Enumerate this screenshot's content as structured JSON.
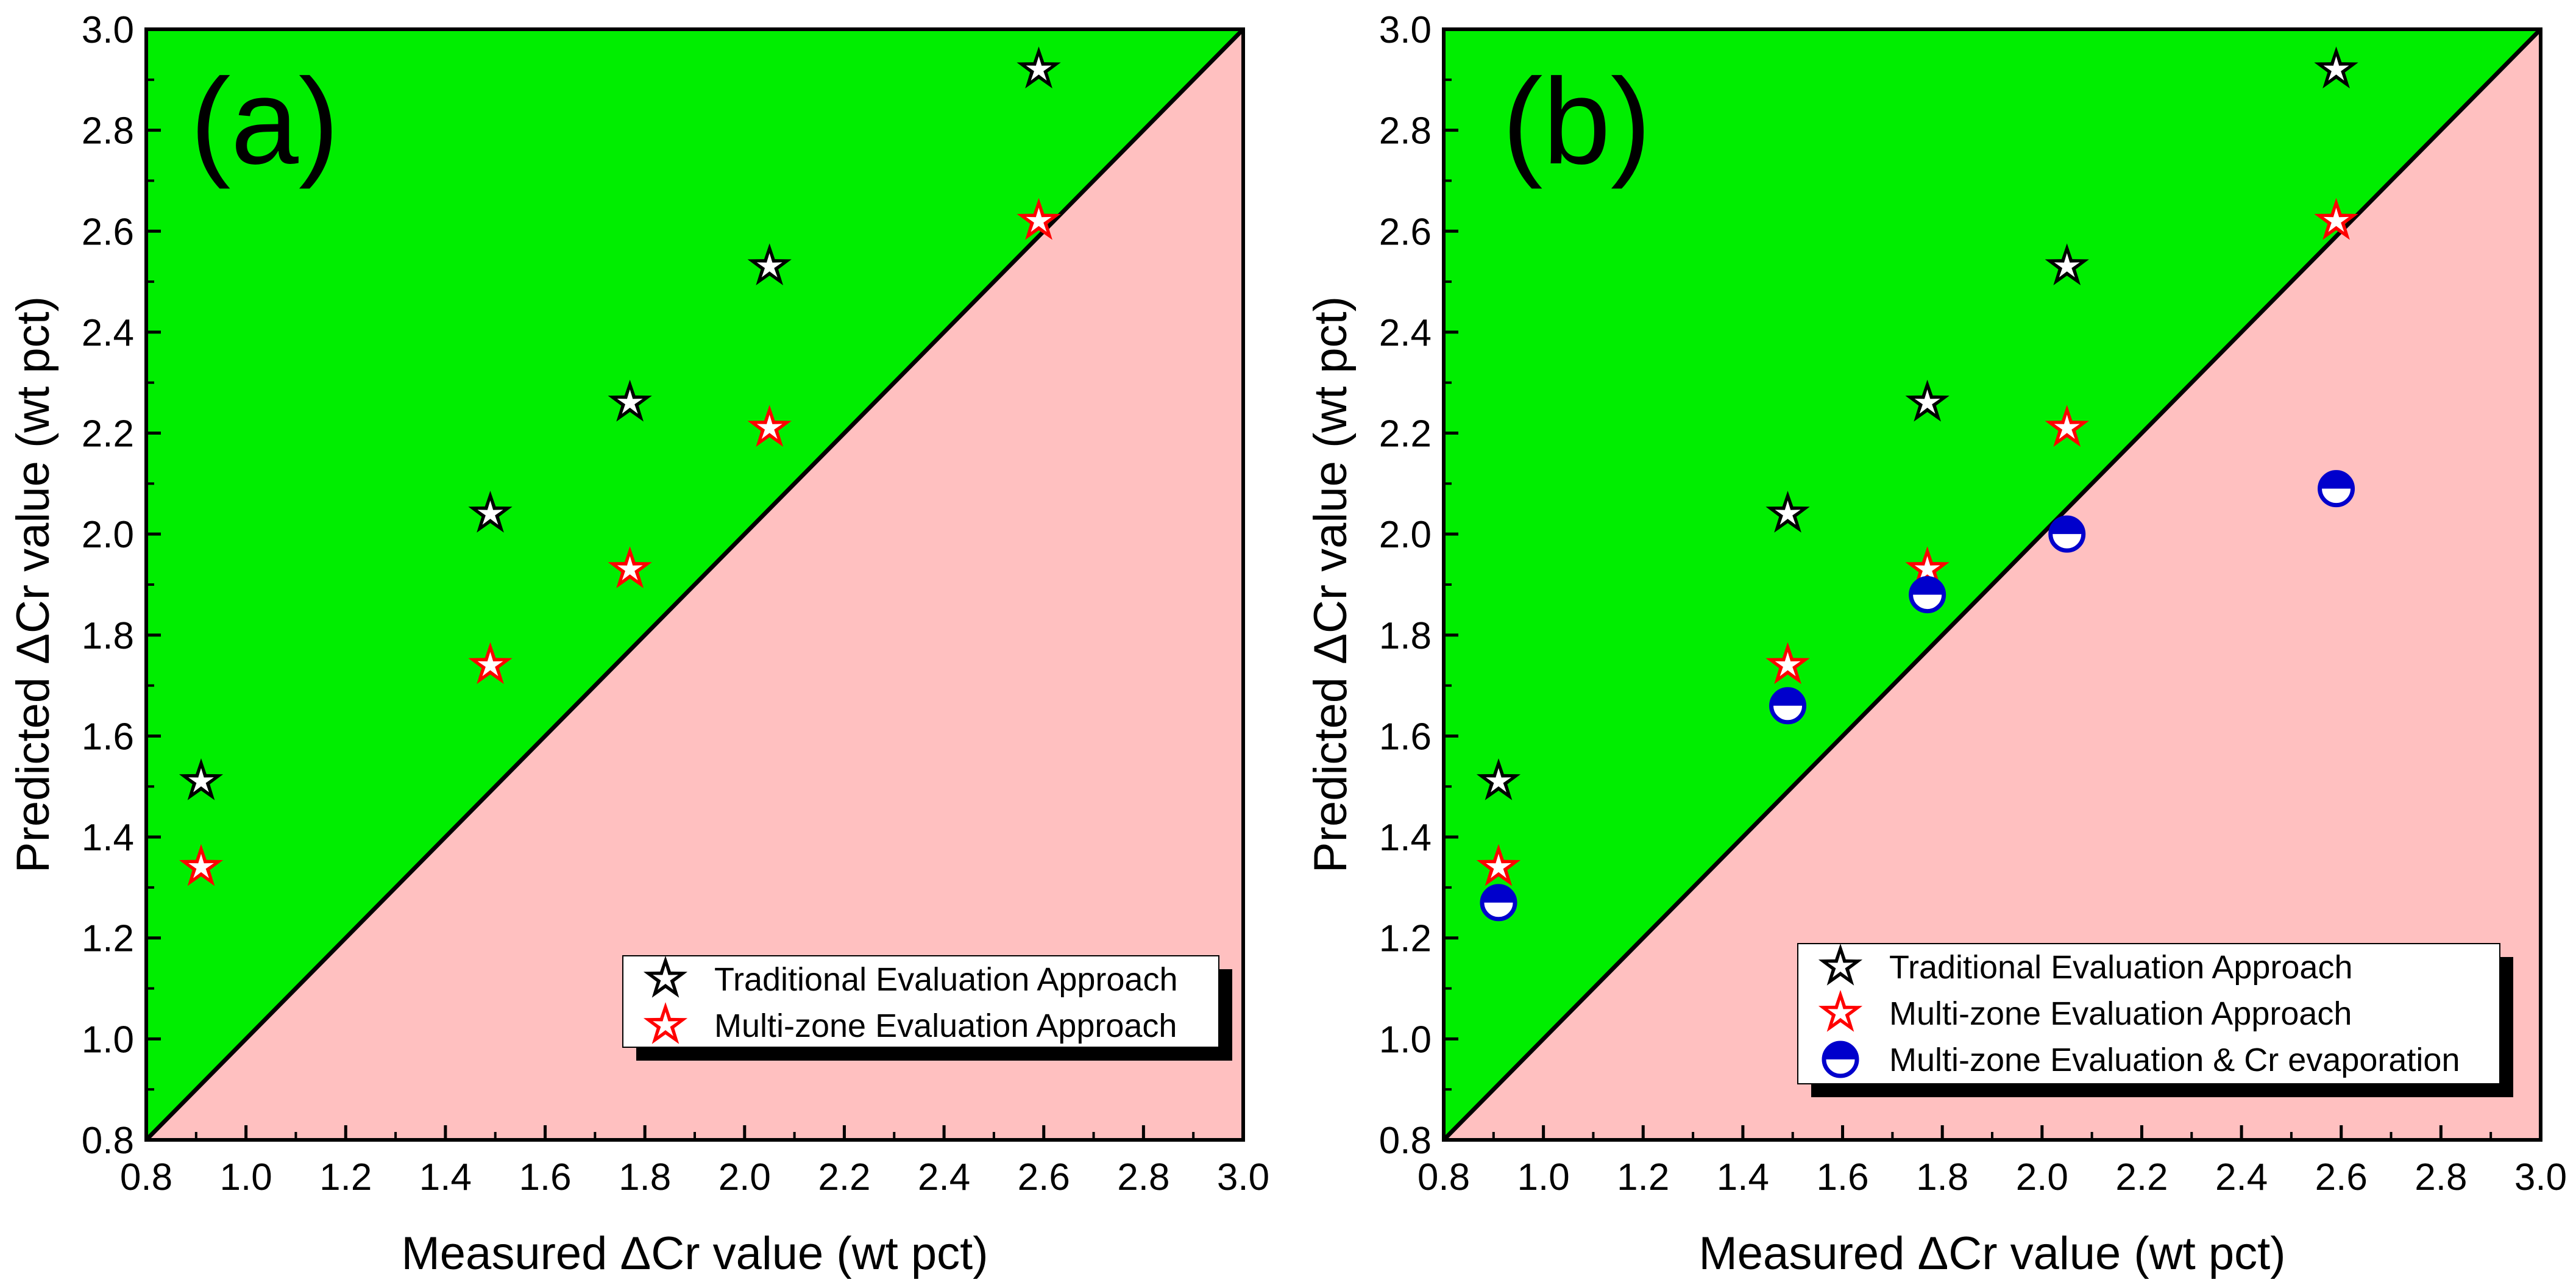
{
  "chart_data": [
    {
      "type": "scatter",
      "panel_label": "(a)",
      "xlabel": "Measured ΔCr value (wt pct)",
      "ylabel": "Predicted ΔCr value (wt pct)",
      "xlim": [
        0.8,
        3.0
      ],
      "ylim": [
        0.8,
        3.0
      ],
      "xticks": [
        "0.8",
        "1.0",
        "1.2",
        "1.4",
        "1.6",
        "1.8",
        "2.0",
        "2.2",
        "2.4",
        "2.6",
        "2.8",
        "3.0"
      ],
      "yticks": [
        "0.8",
        "1.0",
        "1.2",
        "1.4",
        "1.6",
        "1.8",
        "2.0",
        "2.2",
        "2.4",
        "2.6",
        "2.8",
        "3.0"
      ],
      "regions": {
        "above_diagonal": "#00ee00",
        "below_diagonal": "#ffc0c0"
      },
      "legend_position": "bottom-right",
      "series": [
        {
          "name": "Traditional Evaluation Approach",
          "marker": "star",
          "color": "#000000",
          "x": [
            0.91,
            1.49,
            1.77,
            2.05,
            2.59
          ],
          "y": [
            1.51,
            2.04,
            2.26,
            2.53,
            2.92
          ]
        },
        {
          "name": "Multi-zone Evaluation Approach",
          "marker": "star",
          "color": "#ff0000",
          "x": [
            0.91,
            1.49,
            1.77,
            2.05,
            2.59
          ],
          "y": [
            1.34,
            1.74,
            1.93,
            2.21,
            2.62
          ]
        }
      ]
    },
    {
      "type": "scatter",
      "panel_label": "(b)",
      "xlabel": "Measured ΔCr value (wt pct)",
      "ylabel": "Predicted ΔCr value (wt pct)",
      "xlim": [
        0.8,
        3.0
      ],
      "ylim": [
        0.8,
        3.0
      ],
      "xticks": [
        "0.8",
        "1.0",
        "1.2",
        "1.4",
        "1.6",
        "1.8",
        "2.0",
        "2.2",
        "2.4",
        "2.6",
        "2.8",
        "3.0"
      ],
      "yticks": [
        "0.8",
        "1.0",
        "1.2",
        "1.4",
        "1.6",
        "1.8",
        "2.0",
        "2.2",
        "2.4",
        "2.6",
        "2.8",
        "3.0"
      ],
      "regions": {
        "above_diagonal": "#00ee00",
        "below_diagonal": "#ffc0c0"
      },
      "legend_position": "bottom-right",
      "series": [
        {
          "name": "Traditional Evaluation Approach",
          "marker": "star",
          "color": "#000000",
          "x": [
            0.91,
            1.49,
            1.77,
            2.05,
            2.59
          ],
          "y": [
            1.51,
            2.04,
            2.26,
            2.53,
            2.92
          ]
        },
        {
          "name": "Multi-zone Evaluation Approach",
          "marker": "star",
          "color": "#ff0000",
          "x": [
            0.91,
            1.49,
            1.77,
            2.05,
            2.59
          ],
          "y": [
            1.34,
            1.74,
            1.93,
            2.21,
            2.62
          ]
        },
        {
          "name": "Multi-zone Evaluation & Cr evaporation",
          "marker": "half-circle",
          "color": "#0000cc",
          "x": [
            0.91,
            1.49,
            1.77,
            2.05,
            2.59
          ],
          "y": [
            1.27,
            1.66,
            1.88,
            2.0,
            2.09
          ]
        }
      ]
    }
  ]
}
